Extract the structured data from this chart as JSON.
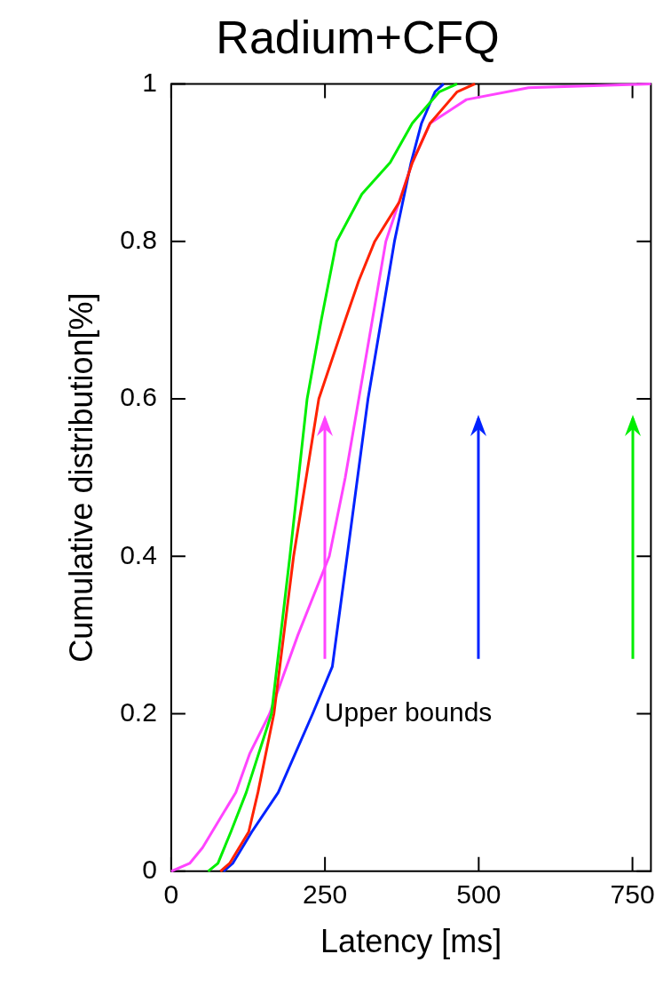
{
  "chart_data": {
    "type": "line",
    "title": "Radium+CFQ",
    "xlabel": "Latency [ms]",
    "ylabel": "Cumulative distribution[%]",
    "xlim": [
      0,
      780
    ],
    "ylim": [
      0,
      1
    ],
    "xticks": [
      0,
      250,
      500,
      750
    ],
    "yticks": [
      0,
      0.2,
      0.4,
      0.6,
      0.8,
      1
    ],
    "grid": false,
    "legend": false,
    "marker": "none",
    "line_style": "solid",
    "series": [
      {
        "color": "#00ee00",
        "x": [
          60,
          76,
          97,
          122,
          163,
          193,
          221,
          244,
          269,
          310,
          356,
          392,
          436,
          465
        ],
        "values": [
          0,
          0.01,
          0.05,
          0.1,
          0.2,
          0.4,
          0.6,
          0.7,
          0.8,
          0.86,
          0.9,
          0.95,
          0.99,
          1
        ]
      },
      {
        "color": "#ff2200",
        "x": [
          80,
          95,
          126,
          141,
          167,
          199,
          240,
          283,
          305,
          331,
          371,
          392,
          421,
          465,
          494
        ],
        "values": [
          0,
          0.01,
          0.05,
          0.1,
          0.2,
          0.4,
          0.6,
          0.7,
          0.75,
          0.8,
          0.85,
          0.9,
          0.95,
          0.99,
          1
        ]
      },
      {
        "color": "#0022ff",
        "x": [
          85,
          100,
          131,
          174,
          230,
          262,
          286,
          320,
          363,
          390,
          407,
          429,
          443
        ],
        "values": [
          0,
          0.01,
          0.05,
          0.1,
          0.2,
          0.26,
          0.4,
          0.6,
          0.8,
          0.9,
          0.95,
          0.99,
          1
        ]
      },
      {
        "color": "#ff44ff",
        "x": [
          0,
          30,
          51,
          105,
          128,
          160,
          206,
          257,
          283,
          305,
          327,
          349,
          392,
          421,
          480,
          581,
          780
        ],
        "values": [
          0,
          0.01,
          0.03,
          0.1,
          0.15,
          0.2,
          0.3,
          0.4,
          0.5,
          0.6,
          0.7,
          0.8,
          0.9,
          0.95,
          0.98,
          0.995,
          1
        ]
      }
    ],
    "ref_lines": [
      {
        "axis": "x",
        "value": 250,
        "color": "#ff44ff"
      },
      {
        "axis": "x",
        "value": 500,
        "color": "#0022ff"
      },
      {
        "axis": "x",
        "value": 750,
        "color": "#00ee00"
      }
    ],
    "annotations": [
      "Upper bounds"
    ]
  }
}
